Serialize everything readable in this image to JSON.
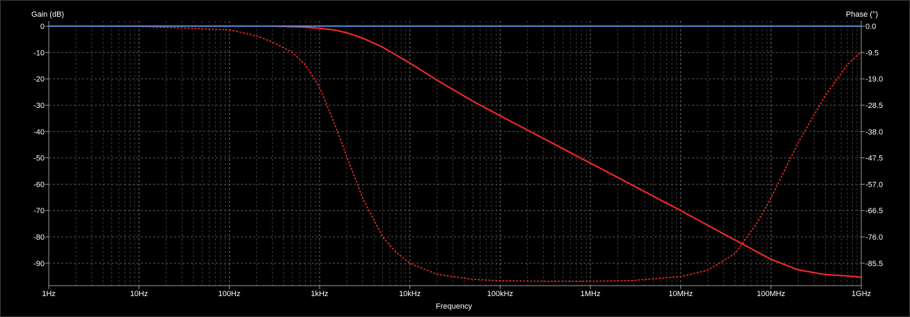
{
  "chart_data": {
    "type": "line",
    "xlabel": "Frequency",
    "ylabel": "Gain (dB)",
    "y2label": "Phase (°)",
    "xscale": "log",
    "xlim": [
      1,
      1000000000
    ],
    "ylim": [
      -98.5,
      2
    ],
    "y2lim": [
      -93.575,
      1.9
    ],
    "grid": true,
    "xticks": [
      {
        "value": 1,
        "label": "1Hz"
      },
      {
        "value": 10,
        "label": "10Hz"
      },
      {
        "value": 100,
        "label": "100Hz"
      },
      {
        "value": 1000,
        "label": "1kHz"
      },
      {
        "value": 10000,
        "label": "10kHz"
      },
      {
        "value": 100000,
        "label": "100kHz"
      },
      {
        "value": 1000000,
        "label": "1MHz"
      },
      {
        "value": 10000000,
        "label": "10MHz"
      },
      {
        "value": 100000000,
        "label": "100MHz"
      },
      {
        "value": 1000000000,
        "label": "1GHz"
      }
    ],
    "yticks": [
      {
        "value": 0,
        "label": "0"
      },
      {
        "value": -10,
        "label": "-10"
      },
      {
        "value": -20,
        "label": "-20"
      },
      {
        "value": -30,
        "label": "-30"
      },
      {
        "value": -40,
        "label": "-40"
      },
      {
        "value": -50,
        "label": "-50"
      },
      {
        "value": -60,
        "label": "-60"
      },
      {
        "value": -70,
        "label": "-70"
      },
      {
        "value": -80,
        "label": "-80"
      },
      {
        "value": -90,
        "label": "-90"
      }
    ],
    "y2ticks": [
      {
        "value": 0.0,
        "label": "0.0"
      },
      {
        "value": -9.5,
        "label": "-9.5"
      },
      {
        "value": -19.0,
        "label": "-19.0"
      },
      {
        "value": -28.5,
        "label": "-28.5"
      },
      {
        "value": -38.0,
        "label": "-38.0"
      },
      {
        "value": -47.5,
        "label": "-47.5"
      },
      {
        "value": -57.0,
        "label": "-57.0"
      },
      {
        "value": -66.5,
        "label": "-66.5"
      },
      {
        "value": -76.0,
        "label": "-76.0"
      },
      {
        "value": -85.5,
        "label": "-85.5"
      }
    ],
    "series": [
      {
        "role": "gain",
        "axis": "left",
        "color": "#ff2a2a",
        "style": "solid",
        "x": [
          1,
          10,
          100,
          300,
          600,
          1000,
          1500,
          2000,
          3000,
          5000,
          10000,
          20000,
          50000,
          100000,
          1000000,
          10000000,
          50000000,
          100000000,
          200000000,
          400000000,
          700000000,
          1000000000
        ],
        "y": [
          0,
          0,
          0,
          0,
          -0.3,
          -0.8,
          -1.5,
          -2.5,
          -4.5,
          -8,
          -14,
          -20.5,
          -28.5,
          -34,
          -52,
          -70,
          -83,
          -88.5,
          -92.5,
          -94.3,
          -94.8,
          -95.3
        ]
      },
      {
        "role": "phase",
        "axis": "right",
        "color": "#ff2a2a",
        "style": "dotted",
        "x": [
          1,
          10,
          100,
          200,
          300,
          500,
          700,
          1000,
          1500,
          2000,
          3000,
          5000,
          7000,
          10000,
          20000,
          50000,
          100000,
          300000,
          1000000,
          3000000,
          10000000,
          20000000,
          40000000,
          70000000,
          100000000,
          200000000,
          400000000,
          700000000,
          1000000000
        ],
        "y": [
          0,
          -0.1,
          -1.3,
          -3.5,
          -5.7,
          -9.5,
          -14,
          -22,
          -36,
          -47,
          -62,
          -76,
          -81.5,
          -85.5,
          -89.5,
          -91.3,
          -91.8,
          -92,
          -92,
          -91.7,
          -90.3,
          -88,
          -82,
          -71,
          -62,
          -42,
          -25,
          -14,
          -9.2
        ]
      },
      {
        "role": "flat-line",
        "axis": "left",
        "color": "#5a8ee6",
        "style": "solid",
        "x": [
          1,
          1000000000
        ],
        "y": [
          0,
          0
        ]
      }
    ]
  }
}
